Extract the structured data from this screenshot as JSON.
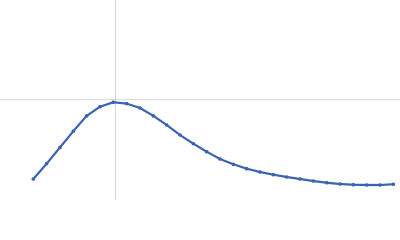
{
  "chart_data": {
    "type": "scatter",
    "x": [
      0.5,
      0.7,
      0.9,
      1.1,
      1.3,
      1.5,
      1.7,
      1.9,
      2.1,
      2.3,
      2.5,
      2.7,
      2.9,
      3.1,
      3.3,
      3.5,
      3.7,
      3.9,
      4.1,
      4.3,
      4.5,
      4.7,
      4.9,
      5.1,
      5.3,
      5.5,
      5.7,
      5.9
    ],
    "y": [
      0.231,
      0.4,
      0.578,
      0.757,
      0.926,
      1.026,
      1.075,
      1.06,
      1.012,
      0.926,
      0.825,
      0.715,
      0.62,
      0.531,
      0.451,
      0.393,
      0.344,
      0.308,
      0.278,
      0.253,
      0.231,
      0.209,
      0.19,
      0.176,
      0.168,
      0.165,
      0.165,
      0.173
    ],
    "color": "#3a64b0",
    "xlim": [
      0,
      6
    ],
    "ylim": [
      0,
      2.2
    ],
    "crosshair": {
      "x": 1.732,
      "y": 1.104
    }
  }
}
